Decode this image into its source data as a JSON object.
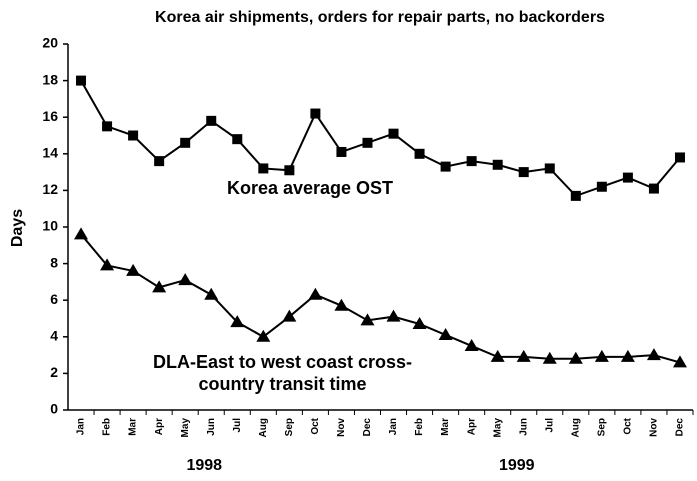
{
  "chart_data": {
    "type": "line",
    "title": "Korea air shipments, orders for repair parts, no backorders",
    "y_label": "Days",
    "categories": [
      "Jan",
      "Feb",
      "Mar",
      "Apr",
      "May",
      "Jun",
      "Jul",
      "Aug",
      "Sep",
      "Oct",
      "Nov",
      "Dec",
      "Jan",
      "Feb",
      "Mar",
      "Apr",
      "May",
      "Jun",
      "Jul",
      "Aug",
      "Sep",
      "Oct",
      "Nov",
      "Dec"
    ],
    "year_labels": [
      "1998",
      "1999"
    ],
    "series": [
      {
        "name": "Korea average OST",
        "color": "#000000",
        "marker": "square",
        "values": [
          18.0,
          15.5,
          15.0,
          13.6,
          14.6,
          15.8,
          14.8,
          13.2,
          13.1,
          16.2,
          14.1,
          14.6,
          15.1,
          14.0,
          13.3,
          13.6,
          13.4,
          13.0,
          13.2,
          11.7,
          12.2,
          12.7,
          12.1,
          13.8
        ]
      },
      {
        "name": "DLA-East to west coast cross-country transit time",
        "color": "#000000",
        "marker": "triangle",
        "values": [
          9.6,
          7.9,
          7.6,
          6.7,
          7.1,
          6.3,
          4.8,
          4.0,
          5.1,
          6.3,
          5.7,
          4.9,
          5.1,
          4.7,
          4.1,
          3.5,
          2.9,
          2.9,
          2.8,
          2.8,
          2.9,
          2.9,
          3.0,
          2.6
        ]
      }
    ],
    "ylim": [
      0,
      20
    ],
    "yticks": [
      0,
      2,
      4,
      6,
      8,
      10,
      12,
      14,
      16,
      18,
      20
    ],
    "grid": false
  }
}
